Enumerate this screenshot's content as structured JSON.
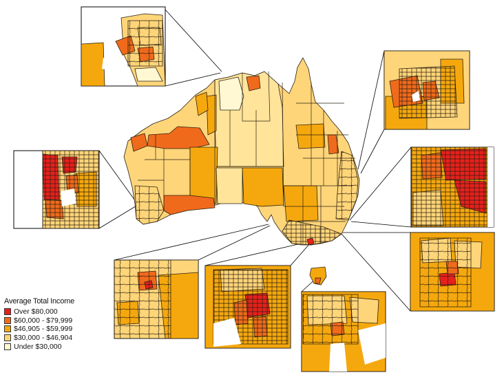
{
  "legend": {
    "title": "Average Total Income",
    "items": [
      {
        "label": "Over $80,000",
        "color": "#e8201c"
      },
      {
        "label": "$60,000 - $79,999",
        "color": "#f06a1c"
      },
      {
        "label": "$46,905 - $59,999",
        "color": "#f5a80e"
      },
      {
        "label": "$30,000 - $46,904",
        "color": "#ffd57a"
      },
      {
        "label": "Under $30,000",
        "color": "#fff8d2"
      }
    ]
  },
  "colors": {
    "boundary": "#2a2010",
    "inset_frame": "#000000",
    "background": "#ffffff"
  }
}
